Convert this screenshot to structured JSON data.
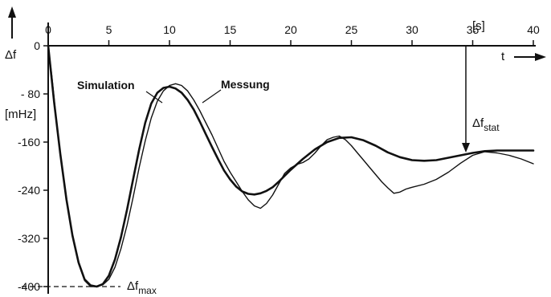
{
  "chart_data": {
    "type": "line",
    "xunit": "[s]",
    "xlabel": "t",
    "ylabel": "Δf",
    "yunit": "[mHz]",
    "xlim": [
      0,
      40
    ],
    "ylim": [
      -400,
      0
    ],
    "x_ticks": [
      0,
      5,
      10,
      15,
      20,
      25,
      30,
      35,
      40
    ],
    "y_ticks": [
      0,
      -80,
      -160,
      -240,
      -320,
      -400
    ],
    "x_tick_labels": [
      "0",
      "5",
      "10",
      "15",
      "20",
      "25",
      "30",
      "35",
      "40"
    ],
    "y_tick_labels": [
      "0",
      "- 80",
      "-160",
      "-240",
      "-320",
      "-400"
    ],
    "grid": false,
    "series": [
      {
        "name": "Simulation",
        "x": [
          0,
          0.5,
          1,
          1.5,
          2,
          2.5,
          3,
          3.5,
          4,
          4.5,
          5,
          5.5,
          6,
          6.5,
          7,
          7.5,
          8,
          8.5,
          9,
          9.5,
          10,
          10.5,
          11,
          11.5,
          12,
          12.5,
          13,
          13.5,
          14,
          14.5,
          15,
          15.5,
          16,
          16.5,
          17,
          17.5,
          18,
          18.5,
          19,
          19.5,
          20,
          21,
          22,
          23,
          24,
          25,
          26,
          27,
          28,
          29,
          30,
          31,
          32,
          33,
          34,
          35,
          36,
          37,
          38,
          39,
          40
        ],
        "y": [
          0,
          -95,
          -180,
          -255,
          -315,
          -360,
          -388,
          -398,
          -400,
          -396,
          -382,
          -355,
          -318,
          -272,
          -222,
          -172,
          -128,
          -96,
          -78,
          -70,
          -68,
          -71,
          -78,
          -90,
          -106,
          -126,
          -147,
          -168,
          -188,
          -207,
          -222,
          -234,
          -242,
          -246,
          -247,
          -245,
          -241,
          -235,
          -226,
          -216,
          -206,
          -188,
          -172,
          -160,
          -153,
          -152,
          -157,
          -166,
          -177,
          -185,
          -190,
          -191,
          -190,
          -186,
          -182,
          -178,
          -175,
          -174,
          -174,
          -174,
          -174
        ]
      },
      {
        "name": "Messung",
        "x": [
          0,
          0.3,
          0.6,
          1,
          1.5,
          2,
          2.5,
          3,
          3.5,
          4,
          4.5,
          5,
          5.5,
          6,
          6.5,
          7,
          7.5,
          8,
          8.5,
          9,
          9.5,
          10,
          10.5,
          11,
          11.5,
          12,
          12.5,
          13,
          13.5,
          14,
          14.5,
          15,
          15.5,
          16,
          16.5,
          17,
          17.5,
          18,
          18.5,
          19,
          19.5,
          20,
          20.5,
          21,
          21.5,
          22,
          22.5,
          23,
          23.5,
          24,
          24.5,
          25,
          25.5,
          26,
          26.5,
          27,
          27.5,
          28,
          28.5,
          29,
          29.5,
          30,
          31,
          32,
          33,
          34,
          35,
          36,
          37,
          38,
          39,
          40
        ],
        "y": [
          0,
          -50,
          -110,
          -180,
          -255,
          -316,
          -362,
          -390,
          -400,
          -400,
          -397,
          -388,
          -368,
          -337,
          -298,
          -252,
          -202,
          -158,
          -120,
          -92,
          -75,
          -66,
          -63,
          -66,
          -75,
          -90,
          -108,
          -128,
          -148,
          -170,
          -192,
          -210,
          -226,
          -242,
          -256,
          -266,
          -270,
          -262,
          -248,
          -230,
          -212,
          -203,
          -197,
          -194,
          -188,
          -178,
          -166,
          -156,
          -152,
          -150,
          -156,
          -166,
          -178,
          -190,
          -202,
          -214,
          -226,
          -236,
          -245,
          -243,
          -238,
          -235,
          -230,
          -222,
          -210,
          -195,
          -182,
          -176,
          -178,
          -182,
          -188,
          -196
        ]
      }
    ],
    "annotations": [
      {
        "text": "Δf",
        "sub": "stat",
        "at_x": 34.2,
        "value": -175
      },
      {
        "text": "Δf",
        "sub": "max",
        "value": -400
      }
    ]
  }
}
